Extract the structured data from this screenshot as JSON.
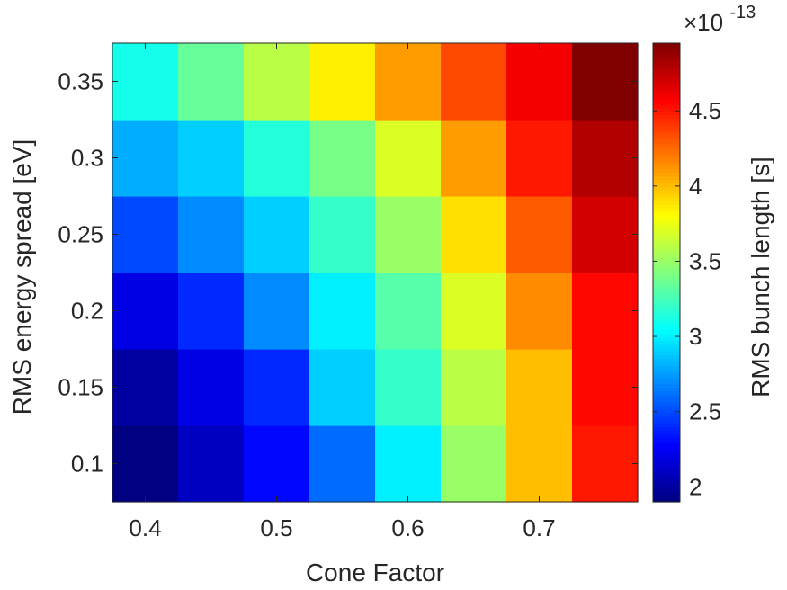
{
  "chart_data": {
    "type": "heatmap",
    "xlabel": "Cone Factor",
    "ylabel": "RMS energy spread [eV]",
    "colorbar_label": "RMS bunch length [s]",
    "colorbar_exponent_base": "×10",
    "colorbar_exponent": "-13",
    "colormap": "jet",
    "x": [
      0.4,
      0.45,
      0.5,
      0.55,
      0.6,
      0.65,
      0.7,
      0.75
    ],
    "y": [
      0.1,
      0.15,
      0.2,
      0.25,
      0.3,
      0.35
    ],
    "xlim": [
      0.375,
      0.775
    ],
    "ylim": [
      0.075,
      0.375
    ],
    "x_ticks": [
      0.4,
      0.5,
      0.6,
      0.7
    ],
    "x_tick_labels": [
      "0.4",
      "0.5",
      "0.6",
      "0.7"
    ],
    "y_ticks": [
      0.1,
      0.15,
      0.2,
      0.25,
      0.3,
      0.35
    ],
    "y_tick_labels": [
      "0.1",
      "0.15",
      "0.2",
      "0.25",
      "0.3",
      "0.35"
    ],
    "clim": [
      1.9,
      4.95
    ],
    "colorbar_ticks": [
      2,
      2.5,
      3,
      3.5,
      4,
      4.5
    ],
    "colorbar_tick_labels": [
      "2",
      "2.5",
      "3",
      "3.5",
      "4",
      "4.5"
    ],
    "values": [
      [
        1.9,
        2.1,
        2.3,
        2.6,
        3.0,
        3.5,
        4.0,
        4.5
      ],
      [
        2.0,
        2.2,
        2.4,
        2.9,
        3.2,
        3.6,
        4.0,
        4.55
      ],
      [
        2.2,
        2.4,
        2.7,
        3.0,
        3.3,
        3.7,
        4.15,
        4.55
      ],
      [
        2.5,
        2.7,
        2.9,
        3.2,
        3.5,
        3.9,
        4.3,
        4.7
      ],
      [
        2.8,
        2.9,
        3.15,
        3.4,
        3.7,
        4.1,
        4.5,
        4.8
      ],
      [
        3.1,
        3.35,
        3.6,
        3.85,
        4.1,
        4.35,
        4.6,
        4.95
      ]
    ]
  }
}
